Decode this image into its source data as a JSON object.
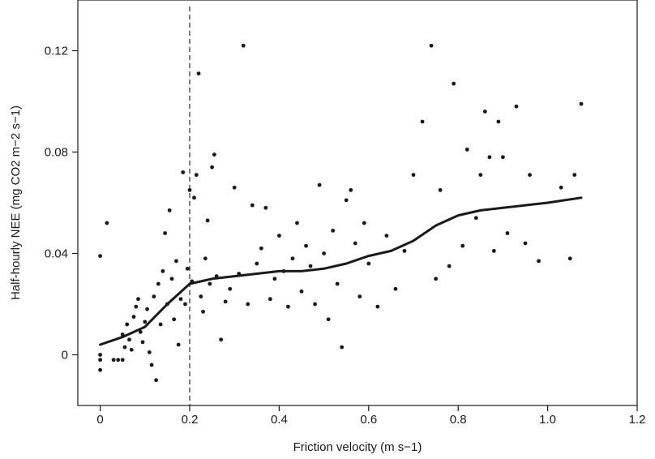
{
  "chart_data": {
    "type": "scatter",
    "title": "",
    "xlabel": "Friction velocity (m s−1)",
    "ylabel": "Half-hourly NEE (mg CO2 m−2 s−1)",
    "xlim": [
      -0.05,
      1.2
    ],
    "ylim": [
      -0.02,
      0.14
    ],
    "xticks": [
      0,
      0.2,
      0.4,
      0.6,
      0.8,
      1.0,
      1.2
    ],
    "xtick_labels": [
      "0",
      "0.2",
      "0.4",
      "0.6",
      "0.8",
      "1.0",
      "1.2"
    ],
    "yticks": [
      0,
      0.04,
      0.08,
      0.12
    ],
    "ytick_labels": [
      "0",
      "0.04",
      "0.08",
      "0.12"
    ],
    "grid": false,
    "threshold_line": {
      "x": 0.2,
      "style": "dashed"
    },
    "series": [
      {
        "kind": "points",
        "values": [
          [
            0.0,
            0.039
          ],
          [
            0.0,
            0.0
          ],
          [
            0.0,
            -0.002
          ],
          [
            0.0,
            -0.006
          ],
          [
            0.015,
            0.052
          ],
          [
            0.03,
            -0.002
          ],
          [
            0.04,
            -0.002
          ],
          [
            0.05,
            -0.002
          ],
          [
            0.05,
            0.008
          ],
          [
            0.055,
            0.003
          ],
          [
            0.06,
            0.012
          ],
          [
            0.065,
            0.006
          ],
          [
            0.07,
            0.002
          ],
          [
            0.075,
            0.015
          ],
          [
            0.08,
            0.019
          ],
          [
            0.085,
            0.022
          ],
          [
            0.09,
            0.009
          ],
          [
            0.095,
            0.005
          ],
          [
            0.1,
            0.013
          ],
          [
            0.105,
            0.018
          ],
          [
            0.11,
            0.001
          ],
          [
            0.115,
            -0.004
          ],
          [
            0.12,
            0.023
          ],
          [
            0.125,
            -0.01
          ],
          [
            0.13,
            0.028
          ],
          [
            0.135,
            0.012
          ],
          [
            0.14,
            0.033
          ],
          [
            0.145,
            0.048
          ],
          [
            0.15,
            0.02
          ],
          [
            0.155,
            0.057
          ],
          [
            0.16,
            0.03
          ],
          [
            0.165,
            0.014
          ],
          [
            0.17,
            0.037
          ],
          [
            0.175,
            0.004
          ],
          [
            0.18,
            0.022
          ],
          [
            0.185,
            0.072
          ],
          [
            0.19,
            0.02
          ],
          [
            0.195,
            0.034
          ],
          [
            0.2,
            0.065
          ],
          [
            0.205,
            0.029
          ],
          [
            0.21,
            0.062
          ],
          [
            0.215,
            0.071
          ],
          [
            0.22,
            0.111
          ],
          [
            0.225,
            0.023
          ],
          [
            0.23,
            0.017
          ],
          [
            0.235,
            0.038
          ],
          [
            0.24,
            0.053
          ],
          [
            0.245,
            0.028
          ],
          [
            0.25,
            0.074
          ],
          [
            0.255,
            0.079
          ],
          [
            0.26,
            0.031
          ],
          [
            0.27,
            0.006
          ],
          [
            0.28,
            0.021
          ],
          [
            0.29,
            0.026
          ],
          [
            0.3,
            0.066
          ],
          [
            0.31,
            0.032
          ],
          [
            0.32,
            0.122
          ],
          [
            0.33,
            0.02
          ],
          [
            0.34,
            0.059
          ],
          [
            0.35,
            0.036
          ],
          [
            0.36,
            0.042
          ],
          [
            0.37,
            0.058
          ],
          [
            0.38,
            0.022
          ],
          [
            0.39,
            0.03
          ],
          [
            0.4,
            0.047
          ],
          [
            0.41,
            0.033
          ],
          [
            0.42,
            0.019
          ],
          [
            0.43,
            0.038
          ],
          [
            0.44,
            0.052
          ],
          [
            0.45,
            0.025
          ],
          [
            0.46,
            0.043
          ],
          [
            0.47,
            0.035
          ],
          [
            0.48,
            0.02
          ],
          [
            0.49,
            0.067
          ],
          [
            0.5,
            0.04
          ],
          [
            0.51,
            0.014
          ],
          [
            0.52,
            0.049
          ],
          [
            0.53,
            0.028
          ],
          [
            0.54,
            0.003
          ],
          [
            0.55,
            0.061
          ],
          [
            0.56,
            0.065
          ],
          [
            0.57,
            0.044
          ],
          [
            0.58,
            0.023
          ],
          [
            0.59,
            0.052
          ],
          [
            0.6,
            0.036
          ],
          [
            0.62,
            0.019
          ],
          [
            0.64,
            0.047
          ],
          [
            0.66,
            0.026
          ],
          [
            0.68,
            0.041
          ],
          [
            0.7,
            0.071
          ],
          [
            0.72,
            0.092
          ],
          [
            0.74,
            0.122
          ],
          [
            0.75,
            0.03
          ],
          [
            0.76,
            0.065
          ],
          [
            0.78,
            0.035
          ],
          [
            0.79,
            0.107
          ],
          [
            0.81,
            0.043
          ],
          [
            0.82,
            0.081
          ],
          [
            0.84,
            0.054
          ],
          [
            0.85,
            0.071
          ],
          [
            0.86,
            0.096
          ],
          [
            0.87,
            0.078
          ],
          [
            0.88,
            0.041
          ],
          [
            0.89,
            0.092
          ],
          [
            0.9,
            0.078
          ],
          [
            0.91,
            0.048
          ],
          [
            0.93,
            0.098
          ],
          [
            0.95,
            0.044
          ],
          [
            0.96,
            0.071
          ],
          [
            0.98,
            0.037
          ],
          [
            1.03,
            0.066
          ],
          [
            1.05,
            0.038
          ],
          [
            1.06,
            0.071
          ],
          [
            1.075,
            0.099
          ]
        ]
      },
      {
        "kind": "smooth_fit",
        "values": [
          [
            0.0,
            0.004
          ],
          [
            0.05,
            0.007
          ],
          [
            0.1,
            0.011
          ],
          [
            0.15,
            0.02
          ],
          [
            0.2,
            0.028
          ],
          [
            0.25,
            0.03
          ],
          [
            0.3,
            0.031
          ],
          [
            0.35,
            0.032
          ],
          [
            0.4,
            0.033
          ],
          [
            0.45,
            0.033
          ],
          [
            0.5,
            0.034
          ],
          [
            0.55,
            0.036
          ],
          [
            0.6,
            0.039
          ],
          [
            0.65,
            0.041
          ],
          [
            0.7,
            0.045
          ],
          [
            0.75,
            0.051
          ],
          [
            0.8,
            0.055
          ],
          [
            0.85,
            0.057
          ],
          [
            0.9,
            0.058
          ],
          [
            0.95,
            0.059
          ],
          [
            1.0,
            0.06
          ],
          [
            1.075,
            0.062
          ]
        ]
      }
    ]
  }
}
